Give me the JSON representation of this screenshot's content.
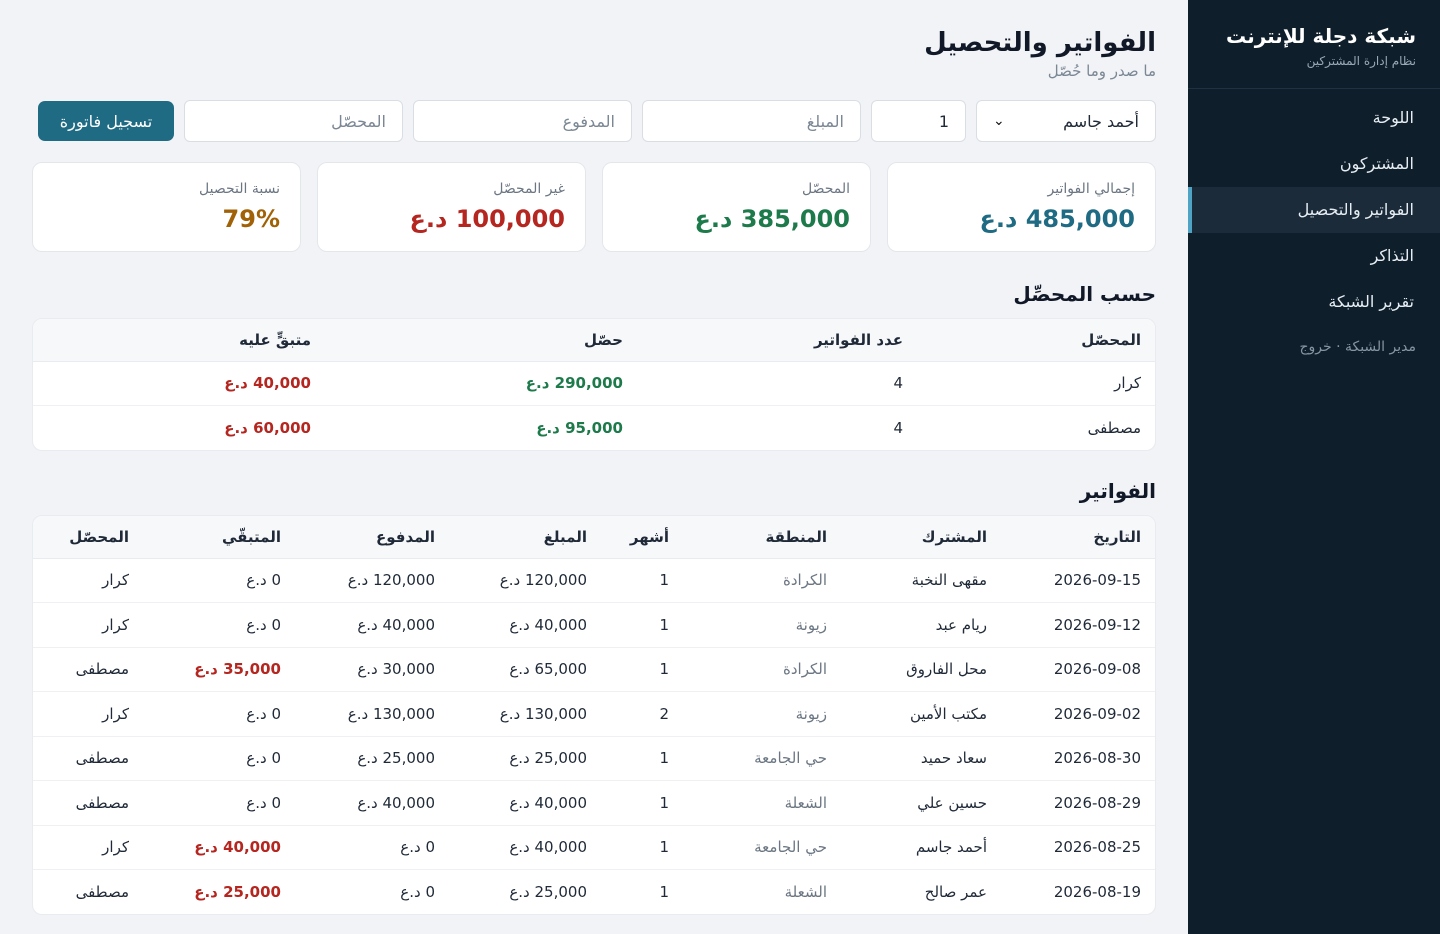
{
  "sidebar": {
    "brand_title": "شبكة دجلة للإنترنت",
    "brand_sub": "نظام إدارة المشتركين",
    "items": [
      {
        "label": "اللوحة"
      },
      {
        "label": "المشتركون"
      },
      {
        "label": "الفواتير والتحصيل"
      },
      {
        "label": "التذاكر"
      },
      {
        "label": "تقرير الشبكة"
      }
    ],
    "footer": "مدير الشبكة · خروج"
  },
  "header": {
    "title": "الفواتير والتحصيل",
    "subtitle": "ما صدر وما حُصّل"
  },
  "form": {
    "subscriber_value": "أحمد جاسم",
    "months_value": "1",
    "amount_placeholder": "المبلغ",
    "paid_placeholder": "المدفوع",
    "collector_placeholder": "المحصّل",
    "submit_label": "تسجيل فاتورة"
  },
  "stats": [
    {
      "label": "إجمالي الفواتير",
      "value": "485,000 د.ع",
      "color": "#1f6b83"
    },
    {
      "label": "المحصّل",
      "value": "385,000 د.ع",
      "color": "#1d7a4a"
    },
    {
      "label": "غير المحصّل",
      "value": "100,000 د.ع",
      "color": "#b4261f"
    },
    {
      "label": "نسبة التحصيل",
      "value": "79%",
      "color": "#a16207"
    }
  ],
  "by_collector": {
    "title": "حسب المحصِّل",
    "headers": [
      "المحصّل",
      "عدد الفواتير",
      "حصّل",
      "متبقٍّ عليه"
    ],
    "rows": [
      {
        "collector": "كرار",
        "count": "4",
        "collected": "290,000 د.ع",
        "remaining": "40,000 د.ع"
      },
      {
        "collector": "مصطفى",
        "count": "4",
        "collected": "95,000 د.ع",
        "remaining": "60,000 د.ع"
      }
    ]
  },
  "invoices": {
    "title": "الفواتير",
    "headers": [
      "التاريخ",
      "المشترك",
      "المنطقة",
      "أشهر",
      "المبلغ",
      "المدفوع",
      "المتبقّي",
      "المحصّل"
    ],
    "rows": [
      {
        "date": "2026-09-15",
        "subscriber": "مقهى النخبة",
        "area": "الكرادة",
        "months": "1",
        "amount": "120,000 د.ع",
        "paid": "120,000 د.ع",
        "remaining": "0 د.ع",
        "remaining_due": false,
        "collector": "كرار"
      },
      {
        "date": "2026-09-12",
        "subscriber": "ريام عبد",
        "area": "زيونة",
        "months": "1",
        "amount": "40,000 د.ع",
        "paid": "40,000 د.ع",
        "remaining": "0 د.ع",
        "remaining_due": false,
        "collector": "كرار"
      },
      {
        "date": "2026-09-08",
        "subscriber": "محل الفاروق",
        "area": "الكرادة",
        "months": "1",
        "amount": "65,000 د.ع",
        "paid": "30,000 د.ع",
        "remaining": "35,000 د.ع",
        "remaining_due": true,
        "collector": "مصطفى"
      },
      {
        "date": "2026-09-02",
        "subscriber": "مكتب الأمين",
        "area": "زيونة",
        "months": "2",
        "amount": "130,000 د.ع",
        "paid": "130,000 د.ع",
        "remaining": "0 د.ع",
        "remaining_due": false,
        "collector": "كرار"
      },
      {
        "date": "2026-08-30",
        "subscriber": "سعاد حميد",
        "area": "حي الجامعة",
        "months": "1",
        "amount": "25,000 د.ع",
        "paid": "25,000 د.ع",
        "remaining": "0 د.ع",
        "remaining_due": false,
        "collector": "مصطفى"
      },
      {
        "date": "2026-08-29",
        "subscriber": "حسين علي",
        "area": "الشعلة",
        "months": "1",
        "amount": "40,000 د.ع",
        "paid": "40,000 د.ع",
        "remaining": "0 د.ع",
        "remaining_due": false,
        "collector": "مصطفى"
      },
      {
        "date": "2026-08-25",
        "subscriber": "أحمد جاسم",
        "area": "حي الجامعة",
        "months": "1",
        "amount": "40,000 د.ع",
        "paid": "0 د.ع",
        "remaining": "40,000 د.ع",
        "remaining_due": true,
        "collector": "كرار"
      },
      {
        "date": "2026-08-19",
        "subscriber": "عمر صالح",
        "area": "الشعلة",
        "months": "1",
        "amount": "25,000 د.ع",
        "paid": "0 د.ع",
        "remaining": "25,000 د.ع",
        "remaining_due": true,
        "collector": "مصطفى"
      }
    ]
  }
}
